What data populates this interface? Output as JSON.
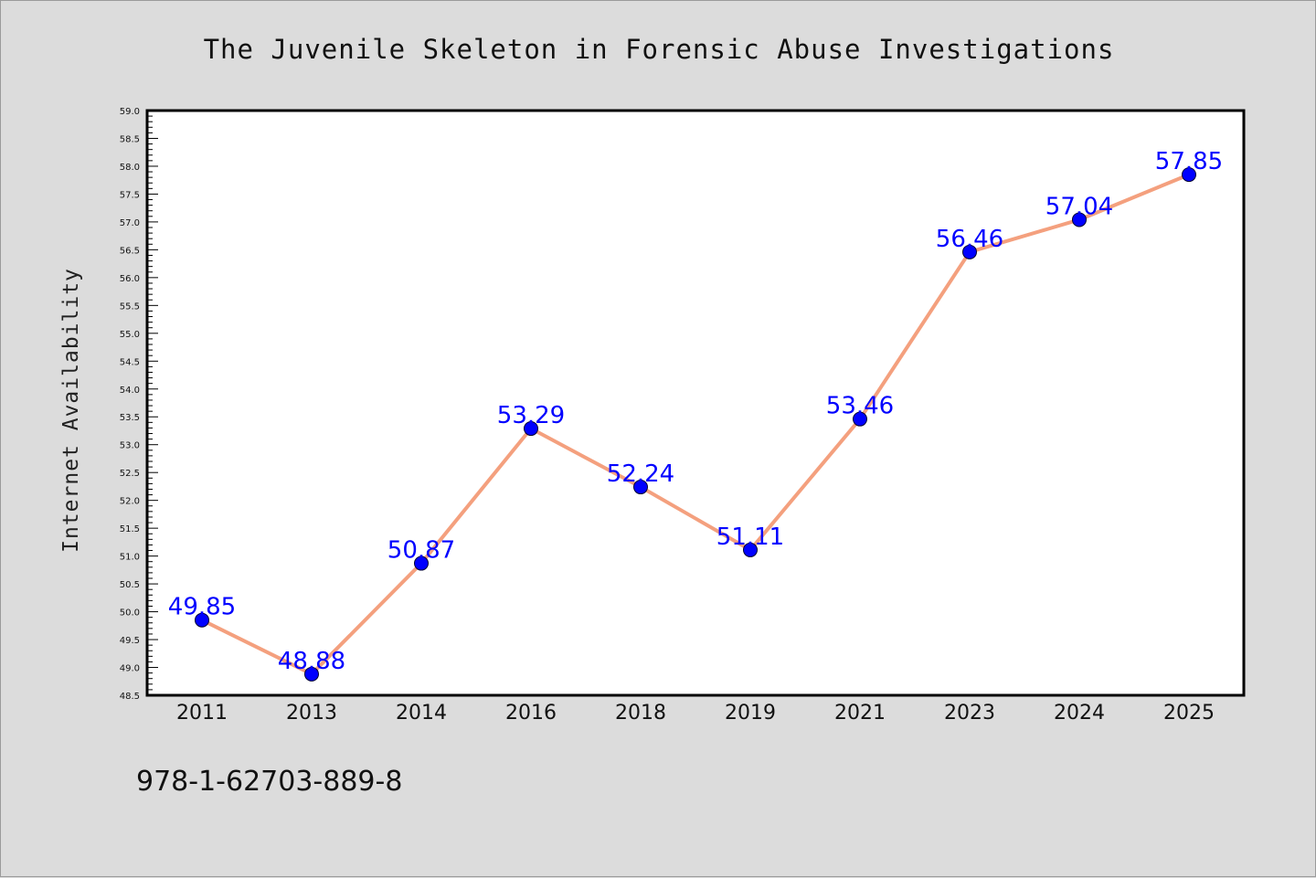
{
  "chart_data": {
    "type": "line",
    "title": "The Juvenile Skeleton in Forensic Abuse Investigations",
    "xlabel": "",
    "ylabel": "Internet Availability",
    "categories": [
      "2011",
      "2013",
      "2014",
      "2016",
      "2018",
      "2019",
      "2021",
      "2023",
      "2024",
      "2025"
    ],
    "series": [
      {
        "values": [
          49.85,
          48.88,
          50.87,
          53.29,
          52.24,
          51.11,
          53.46,
          56.46,
          57.04,
          57.85
        ],
        "data_labels": [
          "49.85",
          "48.88",
          "50.87",
          "53.29",
          "52.24",
          "51.11",
          "53.46",
          "56.46",
          "57.04",
          "57.85"
        ],
        "line_color": "#f4a07e",
        "marker_color": "#0000ff"
      }
    ],
    "ylim": [
      48.5,
      59.0
    ],
    "yticks": [
      "48.5",
      "49.0",
      "49.5",
      "50.0",
      "50.5",
      "51.0",
      "51.5",
      "52.0",
      "52.5",
      "53.0",
      "53.5",
      "54.0",
      "54.5",
      "55.0",
      "55.5",
      "56.0",
      "56.5",
      "57.0",
      "57.5",
      "58.0",
      "58.5",
      "59.0"
    ],
    "grid": false,
    "legend": "none"
  },
  "footer": {
    "isbn": "978-1-62703-889-8"
  },
  "colors": {
    "background": "#dcdcdc",
    "plot_background": "#ffffff",
    "line": "#f4a07e",
    "marker": "#0000ff",
    "data_label": "#0000ff"
  }
}
